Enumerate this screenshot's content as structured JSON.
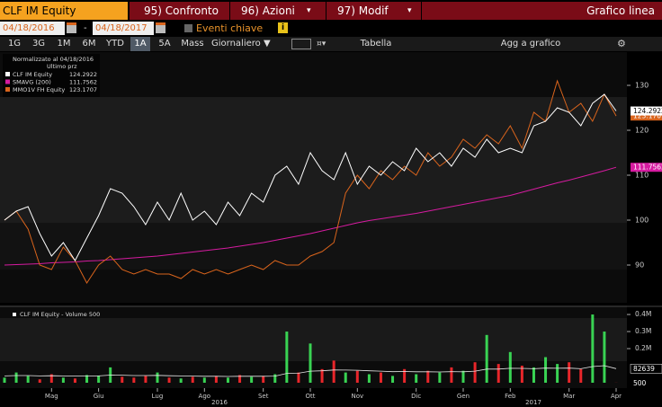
{
  "toolbar": {
    "security": "CLF IM Equity",
    "tabs": [
      "95) Confronto",
      "96) Azioni",
      "97) Modif"
    ],
    "chart_kind": "Grafico linea",
    "start_date": "04/18/2016",
    "separator": "-",
    "end_date": "04/18/2017",
    "key_events": "Eventi chiave",
    "periods": [
      "1G",
      "3G",
      "1M",
      "6M",
      "YTD",
      "1A",
      "5A",
      "Mass"
    ],
    "selected_period": 5,
    "frequency": "Giornaliero",
    "table": "Tabella",
    "add_to_chart": "Agg a grafico"
  },
  "chart_data": [
    {
      "type": "line",
      "legend_title": "Normalizzato al 04/18/2016",
      "legend_subtitle": "Ultimo prz",
      "ylim": [
        82,
        137
      ],
      "yticks": [
        90,
        100,
        110,
        120,
        130
      ],
      "grid": false,
      "legend": "top-left",
      "series": [
        {
          "name": "CLF IM Equity",
          "color": "#ffffff",
          "values": [
            100,
            102,
            103,
            97,
            92,
            95,
            91,
            96,
            101,
            107,
            106,
            103,
            99,
            104,
            100,
            106,
            100,
            102,
            99,
            104,
            101,
            106,
            104,
            110,
            112,
            108,
            115,
            111,
            109,
            115,
            108,
            112,
            110,
            113,
            111,
            116,
            113,
            115,
            112,
            116,
            114,
            118,
            115,
            116,
            115,
            121,
            122,
            125,
            124,
            121,
            126,
            128,
            124.2922
          ]
        },
        {
          "name": "SMAVG (200)",
          "color": "#d61ba0",
          "values": [
            90.0,
            90.1,
            90.2,
            90.3,
            90.5,
            90.6,
            90.7,
            90.9,
            91.0,
            91.2,
            91.4,
            91.6,
            91.8,
            92.0,
            92.3,
            92.6,
            92.9,
            93.2,
            93.5,
            93.8,
            94.2,
            94.6,
            95.0,
            95.5,
            96.0,
            96.5,
            97.0,
            97.6,
            98.2,
            98.8,
            99.4,
            99.9,
            100.3,
            100.7,
            101.1,
            101.5,
            102.0,
            102.5,
            103.0,
            103.5,
            104.0,
            104.5,
            105.0,
            105.5,
            106.2,
            106.9,
            107.6,
            108.3,
            108.9,
            109.6,
            110.3,
            111.0,
            111.7562
          ]
        },
        {
          "name": "MMO1V FH Equity",
          "color": "#d9641c",
          "values": [
            100,
            102,
            98,
            90,
            89,
            94,
            91,
            86,
            90,
            92,
            89,
            88,
            89,
            88,
            88,
            87,
            89,
            88,
            89,
            88,
            89,
            90,
            89,
            91,
            90,
            90,
            92,
            93,
            95,
            106,
            110,
            107,
            111,
            109,
            112,
            110,
            115,
            112,
            114,
            118,
            116,
            119,
            117,
            121,
            116,
            124,
            122,
            131,
            124,
            126,
            122,
            128,
            123.1707
          ]
        }
      ]
    },
    {
      "type": "bar",
      "title": "CLF IM Equity - Volume 500",
      "categories": [
        null,
        null,
        null,
        null,
        "Mag",
        null,
        null,
        null,
        "Giu",
        null,
        null,
        null,
        null,
        "Lug",
        null,
        null,
        null,
        "Ago",
        null,
        null,
        null,
        null,
        "Set",
        null,
        null,
        null,
        "Ott",
        null,
        null,
        null,
        "Nov",
        null,
        null,
        null,
        null,
        "Dic",
        null,
        null,
        null,
        "Gen",
        null,
        null,
        null,
        "Feb",
        null,
        null,
        null,
        null,
        "Mar",
        null,
        null,
        null,
        "Apr"
      ],
      "year_labels": [
        "2016",
        "2017"
      ],
      "ylim": [
        0,
        437000
      ],
      "yticks": [
        {
          "value": 400000,
          "label": "0.4M"
        },
        {
          "value": 300000,
          "label": "0.3M"
        },
        {
          "value": 200000,
          "label": "0.2M"
        }
      ],
      "series": [
        {
          "type": "bar",
          "colors": [
            "#39d353",
            "#39d353",
            "#39d353",
            "#e8262a",
            "#e8262a",
            "#39d353",
            "#e8262a",
            "#39d353",
            "#39d353",
            "#39d353",
            "#e8262a",
            "#e8262a",
            "#e8262a",
            "#39d353",
            "#e8262a",
            "#39d353",
            "#e8262a",
            "#39d353",
            "#e8262a",
            "#39d353",
            "#e8262a",
            "#39d353",
            "#e8262a",
            "#39d353",
            "#39d353",
            "#e8262a",
            "#39d353",
            "#e8262a",
            "#e8262a",
            "#39d353",
            "#e8262a",
            "#39d353",
            "#e8262a",
            "#39d353",
            "#e8262a",
            "#39d353",
            "#e8262a",
            "#39d353",
            "#e8262a",
            "#39d353",
            "#e8262a",
            "#39d353",
            "#e8262a",
            "#39d353",
            "#e8262a",
            "#39d353",
            "#39d353",
            "#39d353",
            "#e8262a",
            "#e8262a",
            "#39d353",
            "#39d353",
            "#e8262a"
          ],
          "values": [
            30000,
            60000,
            40000,
            20000,
            50000,
            30000,
            25000,
            45000,
            40000,
            90000,
            35000,
            30000,
            40000,
            60000,
            30000,
            25000,
            35000,
            30000,
            40000,
            30000,
            45000,
            35000,
            40000,
            50000,
            300000,
            60000,
            230000,
            80000,
            130000,
            60000,
            70000,
            50000,
            60000,
            40000,
            80000,
            50000,
            70000,
            60000,
            90000,
            70000,
            120000,
            280000,
            110000,
            180000,
            100000,
            90000,
            150000,
            110000,
            120000,
            80000,
            400000,
            300000,
            500
          ]
        },
        {
          "type": "line",
          "color": "#e6e6e6",
          "values": [
            40000,
            42000,
            42000,
            40000,
            41000,
            40000,
            39000,
            40000,
            40000,
            45000,
            44000,
            42000,
            42000,
            43000,
            41000,
            40000,
            39000,
            38000,
            38000,
            37000,
            38000,
            38000,
            38000,
            39000,
            55000,
            56000,
            68000,
            70000,
            75000,
            74000,
            73000,
            70000,
            68000,
            65000,
            66000,
            64000,
            64000,
            63000,
            65000,
            64000,
            68000,
            80000,
            80000,
            85000,
            84000,
            82000,
            86000,
            85000,
            86000,
            82000,
            95000,
            100000,
            82639
          ]
        }
      ]
    }
  ]
}
